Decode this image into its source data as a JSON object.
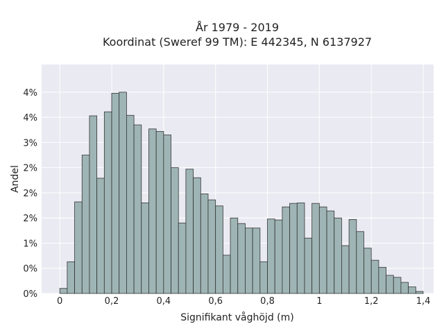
{
  "chart_data": {
    "type": "bar",
    "title_lines": [
      "År 1979 - 2019",
      "Koordinat (Sweref 99 TM): E 442345, N 6137927"
    ],
    "xlabel": "Signifikant våghöjd (m)",
    "ylabel": "Andel",
    "xlim": [
      -0.07,
      1.44
    ],
    "ylim": [
      0,
      4.55
    ],
    "x_ticks": [
      0,
      0.2,
      0.4,
      0.6,
      0.8,
      1.0,
      1.2,
      1.4
    ],
    "x_tick_labels": [
      "0",
      "0,2",
      "0,4",
      "0,6",
      "0,8",
      "1",
      "1,2",
      "1,4"
    ],
    "y_ticks": [
      0,
      0.5,
      1.0,
      1.5,
      2.0,
      2.5,
      3.0,
      3.5,
      4.0
    ],
    "y_tick_labels": [
      "0%",
      "0%",
      "1%",
      "2%",
      "2%",
      "2%",
      "3%",
      "4%",
      "4%"
    ],
    "bin_width": 0.02857,
    "bin_start": 0,
    "values": [
      0.1,
      0.63,
      1.82,
      2.75,
      3.53,
      2.29,
      3.61,
      3.98,
      4.0,
      3.54,
      3.35,
      1.8,
      3.27,
      3.22,
      3.15,
      2.5,
      1.4,
      2.47,
      2.3,
      1.98,
      1.86,
      1.74,
      0.76,
      1.5,
      1.39,
      1.3,
      1.3,
      0.63,
      1.48,
      1.46,
      1.72,
      1.79,
      1.8,
      1.1,
      1.79,
      1.72,
      1.64,
      1.5,
      0.95,
      1.47,
      1.23,
      0.9,
      0.66,
      0.52,
      0.36,
      0.32,
      0.22,
      0.13,
      0.04
    ],
    "bar_color": "#9fb5b5",
    "bar_edge_color": "#333333",
    "background_color": "#eaeaf2",
    "grid": true,
    "grid_color": "#ffffff"
  }
}
